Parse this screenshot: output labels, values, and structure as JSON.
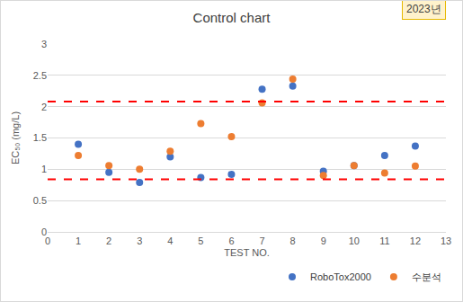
{
  "chart_data": {
    "type": "scatter",
    "title": "Control chart",
    "annotations": [
      "2023년"
    ],
    "x_label": "TEST NO.",
    "y_label": "EC₅₀ (mg/L)",
    "x": [
      1,
      2,
      3,
      4,
      5,
      6,
      7,
      8,
      9,
      10,
      11,
      12
    ],
    "series": [
      {
        "name": "RoboTox2000",
        "color": "#4472c4",
        "marker": "circle",
        "values": [
          1.4,
          0.95,
          0.79,
          1.2,
          0.87,
          0.92,
          2.28,
          2.33,
          0.97,
          1.06,
          1.22,
          1.37
        ]
      },
      {
        "name": "수분석",
        "color": "#ed7d31",
        "marker": "circle",
        "values": [
          1.22,
          1.06,
          1.0,
          1.29,
          1.73,
          1.52,
          2.06,
          2.44,
          0.9,
          1.06,
          0.94,
          1.05
        ]
      }
    ],
    "control_limits": [
      {
        "value": 2.08,
        "color": "#ff0000",
        "line_style": "dash"
      },
      {
        "value": 0.84,
        "color": "#ff0000",
        "line_style": "dash"
      }
    ],
    "xlim": [
      0,
      13
    ],
    "xticks": [
      0,
      1,
      2,
      3,
      4,
      5,
      6,
      7,
      8,
      9,
      10,
      11,
      12,
      13
    ],
    "ylim": [
      0,
      3
    ],
    "yticks": [
      0,
      0.5,
      1,
      1.5,
      2,
      2.5,
      3
    ],
    "grid": true,
    "legend": "bottom-right"
  }
}
